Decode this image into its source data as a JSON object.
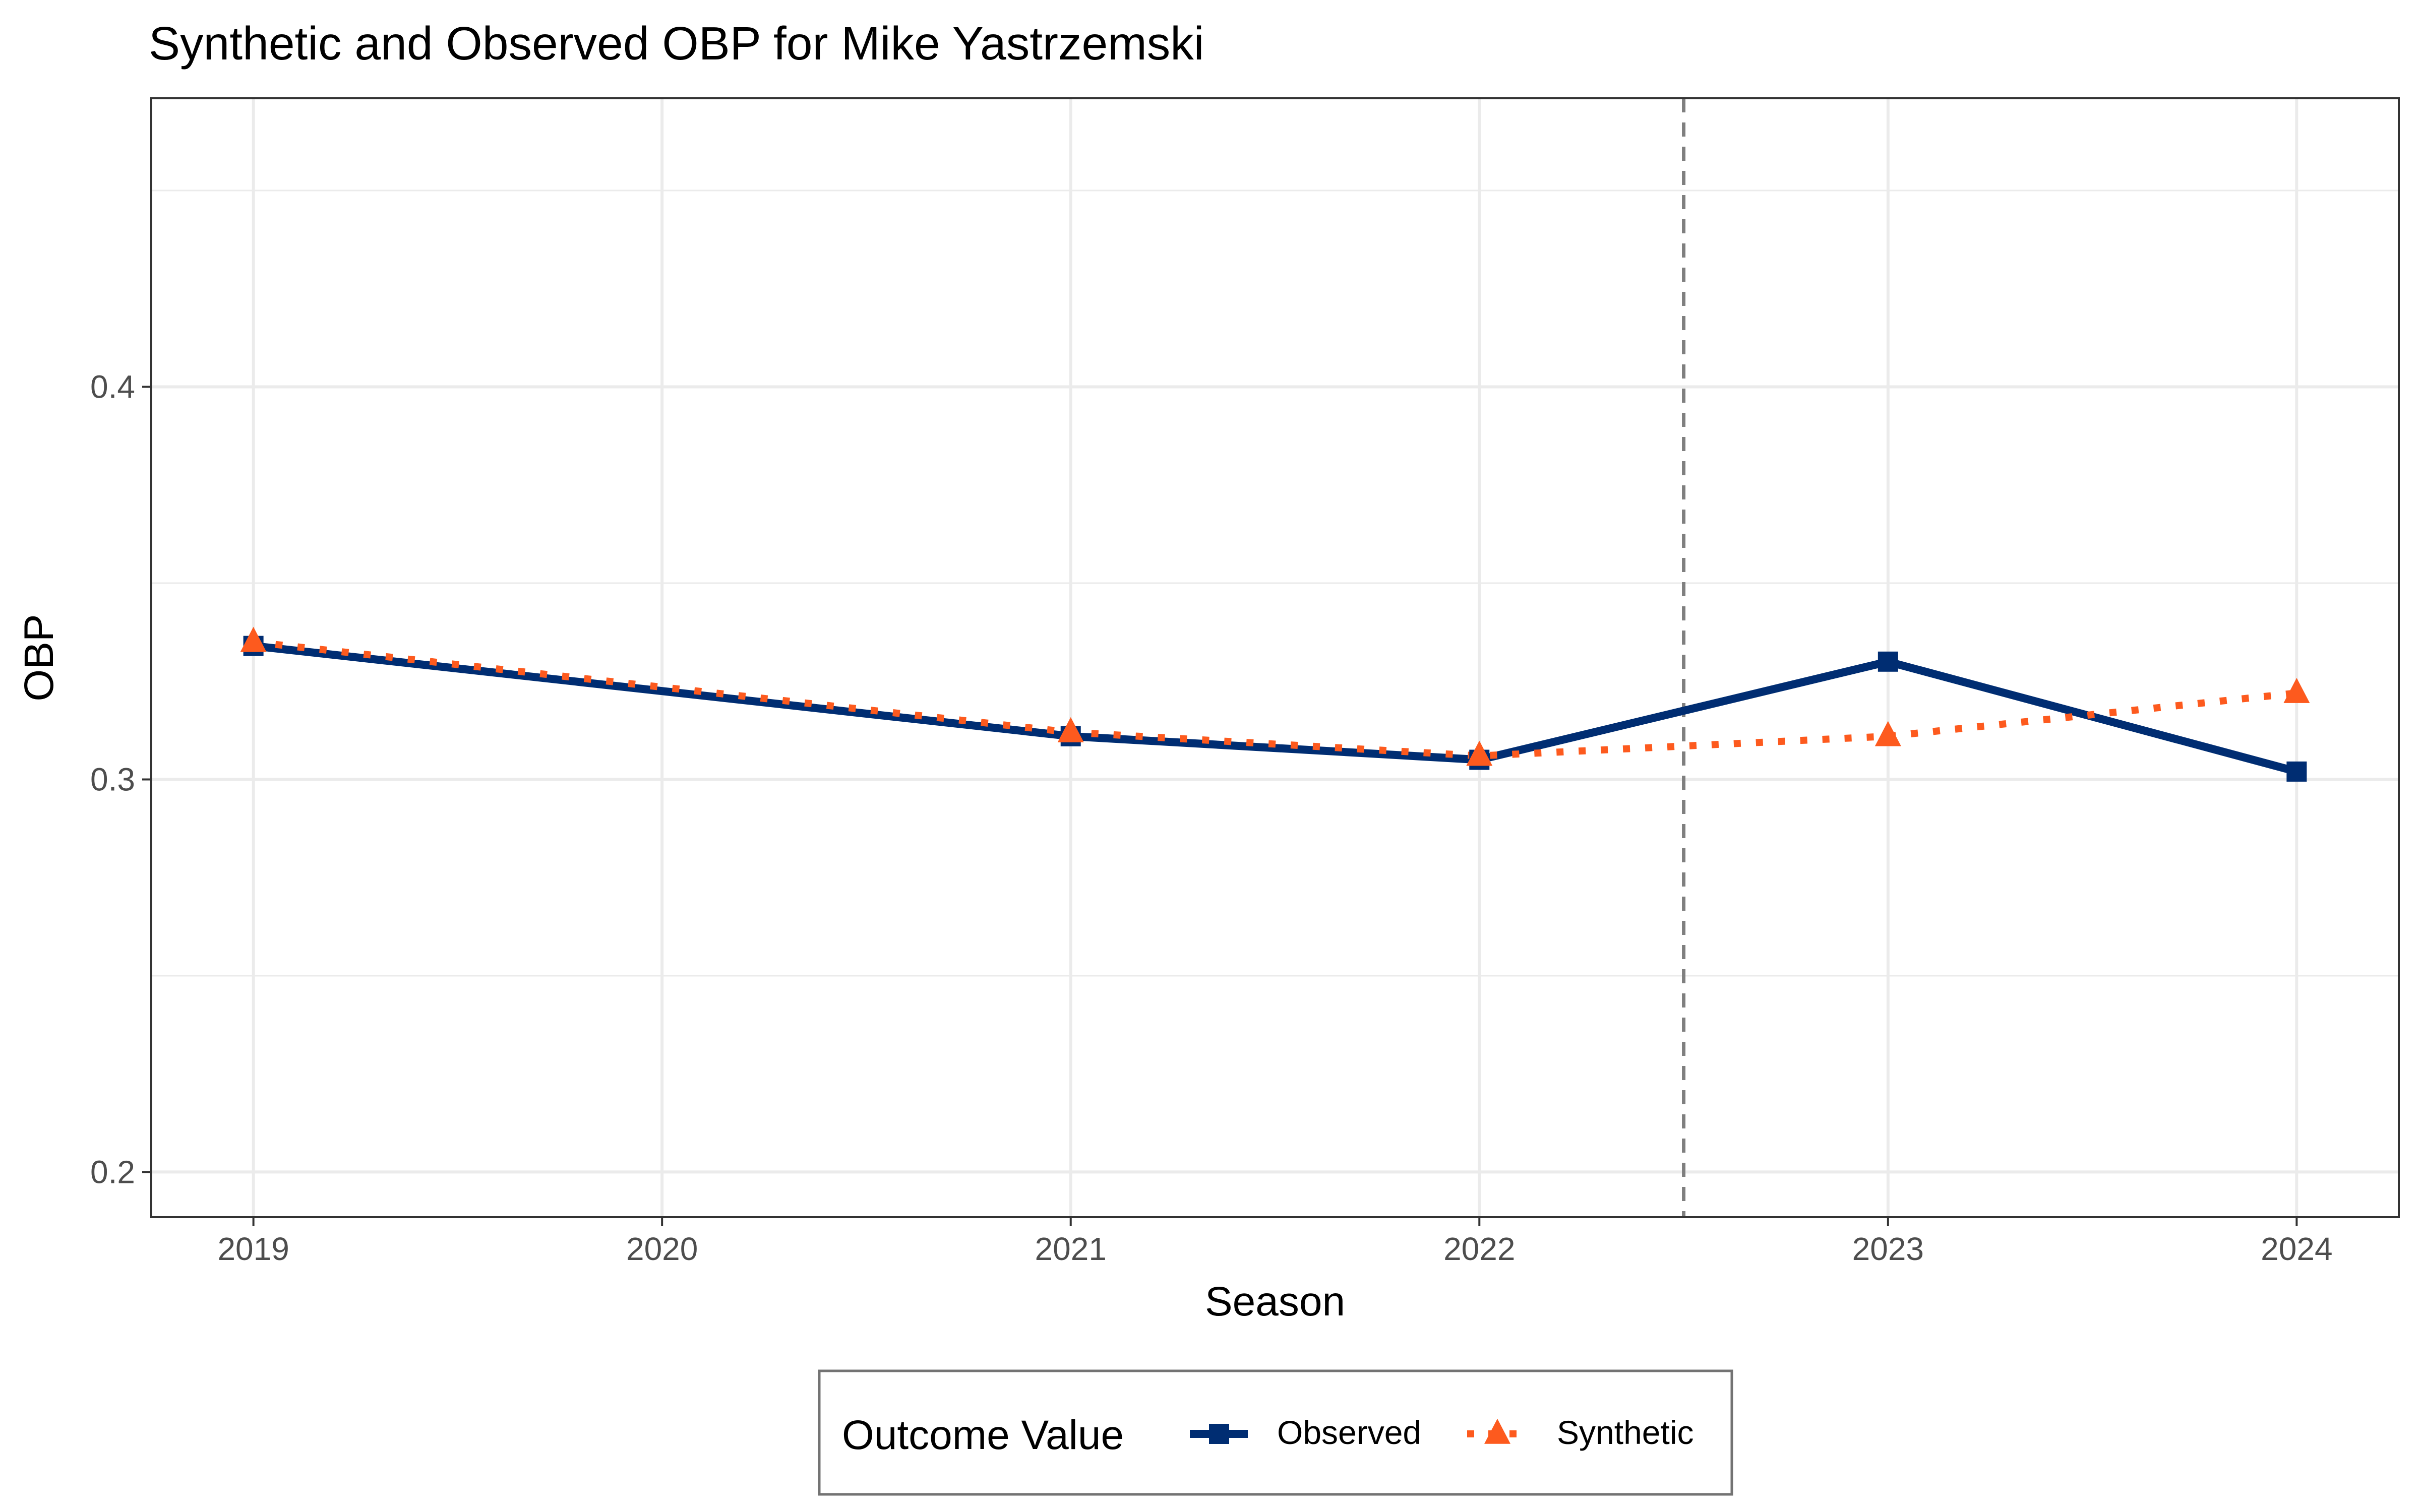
{
  "chart_data": {
    "type": "line",
    "title": "Synthetic and Observed OBP for Mike Yastrzemski",
    "xlabel": "Season",
    "ylabel": "OBP",
    "x_ticks": [
      "2019",
      "2020",
      "2021",
      "2022",
      "2023",
      "2024"
    ],
    "y_ticks": [
      "0.2",
      "0.3",
      "0.4"
    ],
    "xlim": [
      2018.75,
      2024.25
    ],
    "ylim": [
      0.1885,
      0.4735
    ],
    "grid": true,
    "treatment_line": {
      "x": 2022.5,
      "style": "dashed"
    },
    "legend": {
      "title": "Outcome Value",
      "position": "bottom"
    },
    "series": [
      {
        "name": "Observed",
        "color": "#002D72",
        "line_style": "solid",
        "marker": "square",
        "x": [
          2019,
          2021,
          2022,
          2023,
          2024
        ],
        "y": [
          0.334,
          0.311,
          0.305,
          0.33,
          0.302
        ]
      },
      {
        "name": "Synthetic",
        "color": "#FD5A1E",
        "line_style": "dotted",
        "marker": "triangle",
        "x": [
          2019,
          2021,
          2022,
          2023,
          2024
        ],
        "y": [
          0.335,
          0.312,
          0.306,
          0.311,
          0.322
        ]
      }
    ]
  }
}
